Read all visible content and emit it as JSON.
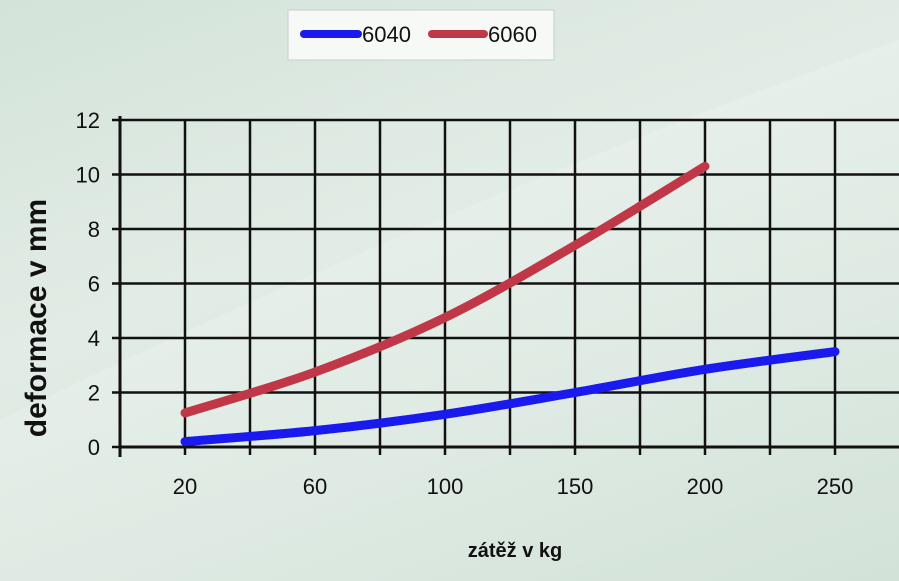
{
  "chart_data": {
    "type": "line",
    "categories": [
      "20",
      "60",
      "100",
      "150",
      "200",
      "250"
    ],
    "x": [
      20,
      60,
      100,
      150,
      200,
      250
    ],
    "series": [
      {
        "name": "6040",
        "color": "#1a1aee",
        "values": [
          0.2,
          0.6,
          1.2,
          2.0,
          2.85,
          3.5
        ]
      },
      {
        "name": "6060",
        "color": "#c03848",
        "values": [
          1.25,
          2.75,
          4.75,
          7.4,
          10.3,
          null
        ]
      }
    ],
    "xlabel": "zátěž v kg",
    "ylabel": "deformace v mm",
    "yticks": [
      "0",
      "2",
      "4",
      "6",
      "8",
      "10",
      "12"
    ],
    "ylim": [
      0,
      12
    ],
    "grid": true,
    "legend_position": "top-center"
  }
}
